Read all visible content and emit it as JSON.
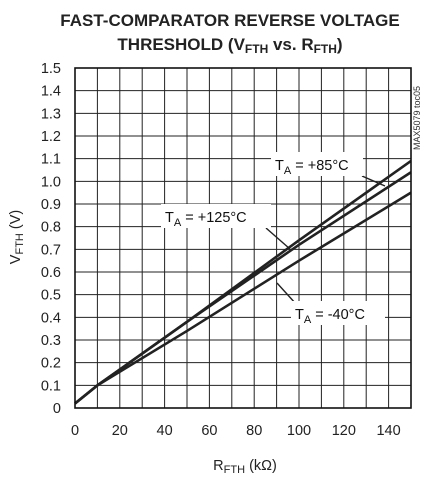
{
  "chart_data": {
    "type": "line",
    "title_line1": "FAST-COMPARATOR REVERSE VOLTAGE",
    "title_line2": {
      "main": "THRESHOLD (V",
      "sub1": "FTH",
      "mid": " vs. R",
      "sub2": "FTH",
      "end": ")"
    },
    "ylabel": {
      "main": "V",
      "sub": "FTH",
      "end": " (V)"
    },
    "xlabel": {
      "main": "R",
      "sub": "FTH",
      "end": " (kΩ)"
    },
    "figure_code": "MAX5079 toc05",
    "xlim": [
      0,
      150
    ],
    "ylim": [
      0,
      1.5
    ],
    "x_ticks": [
      0,
      20,
      40,
      60,
      80,
      100,
      120,
      140
    ],
    "y_ticks": [
      0,
      0.1,
      0.2,
      0.3,
      0.4,
      0.5,
      0.6,
      0.7,
      0.8,
      0.9,
      1.0,
      1.1,
      1.2,
      1.3,
      1.4,
      1.5
    ],
    "y_tick_labels": [
      "0",
      "0.1",
      "0.2",
      "0.3",
      "0.4",
      "0.5",
      "0.6",
      "0.7",
      "0.8",
      "0.9",
      "1.0",
      "1.1",
      "1.2",
      "1.3",
      "1.4",
      "1.5"
    ],
    "grid": true,
    "series": [
      {
        "name": "TA = +85°C",
        "x": [
          0,
          10,
          50,
          100,
          150
        ],
        "y": [
          0.02,
          0.1,
          0.38,
          0.74,
          1.09
        ]
      },
      {
        "name": "TA = +125°C",
        "x": [
          0,
          10,
          50,
          100,
          150
        ],
        "y": [
          0.02,
          0.1,
          0.38,
          0.72,
          1.04
        ]
      },
      {
        "name": "TA = -40°C",
        "x": [
          0,
          10,
          50,
          100,
          150
        ],
        "y": [
          0.02,
          0.1,
          0.34,
          0.65,
          0.95
        ]
      }
    ],
    "annotations": [
      {
        "text_main": "T",
        "text_sub": "A",
        "text_end": " = +85°C",
        "series": 0
      },
      {
        "text_main": "T",
        "text_sub": "A",
        "text_end": " = +125°C",
        "series": 1
      },
      {
        "text_main": "T",
        "text_sub": "A",
        "text_end": " = -40°C",
        "series": 2
      }
    ],
    "colors": {
      "line": "#222222",
      "grid": "#222222",
      "frame": "#111111"
    }
  }
}
